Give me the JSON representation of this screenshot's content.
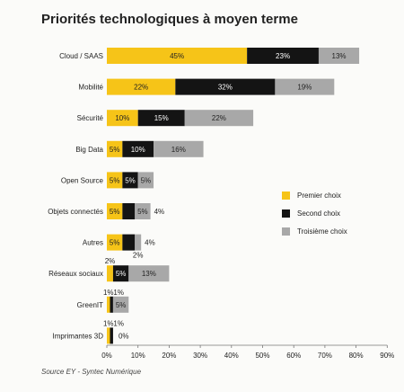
{
  "title": "Priorités technologiques à moyen terme",
  "source": "Source EY - Syntec Numérique",
  "colors": {
    "premier": "#f6c418",
    "second": "#141414",
    "troisieme": "#a8a8a8"
  },
  "chart_data": {
    "type": "bar",
    "orientation": "horizontal",
    "stacked": true,
    "title": "Priorités technologiques à moyen terme",
    "categories": [
      "Cloud / SAAS",
      "Mobilité",
      "Sécurité",
      "Big Data",
      "Open Source",
      "Objets connectés",
      "Autres",
      "Réseaux sociaux",
      "GreenIT",
      "Imprimantes 3D"
    ],
    "series": [
      {
        "name": "Premier choix",
        "values": [
          45,
          22,
          10,
          5,
          5,
          5,
          5,
          2,
          1,
          1
        ]
      },
      {
        "name": "Second choix",
        "values": [
          23,
          32,
          15,
          10,
          5,
          4,
          4,
          5,
          1,
          1
        ]
      },
      {
        "name": "Troisième choix",
        "values": [
          13,
          19,
          22,
          16,
          5,
          5,
          2,
          13,
          5,
          0
        ]
      }
    ],
    "xlim": [
      0,
      90
    ],
    "xticks": [
      "0%",
      "10%",
      "20%",
      "30%",
      "40%",
      "50%",
      "60%",
      "70%",
      "80%",
      "90%"
    ],
    "legend_position": "right"
  }
}
